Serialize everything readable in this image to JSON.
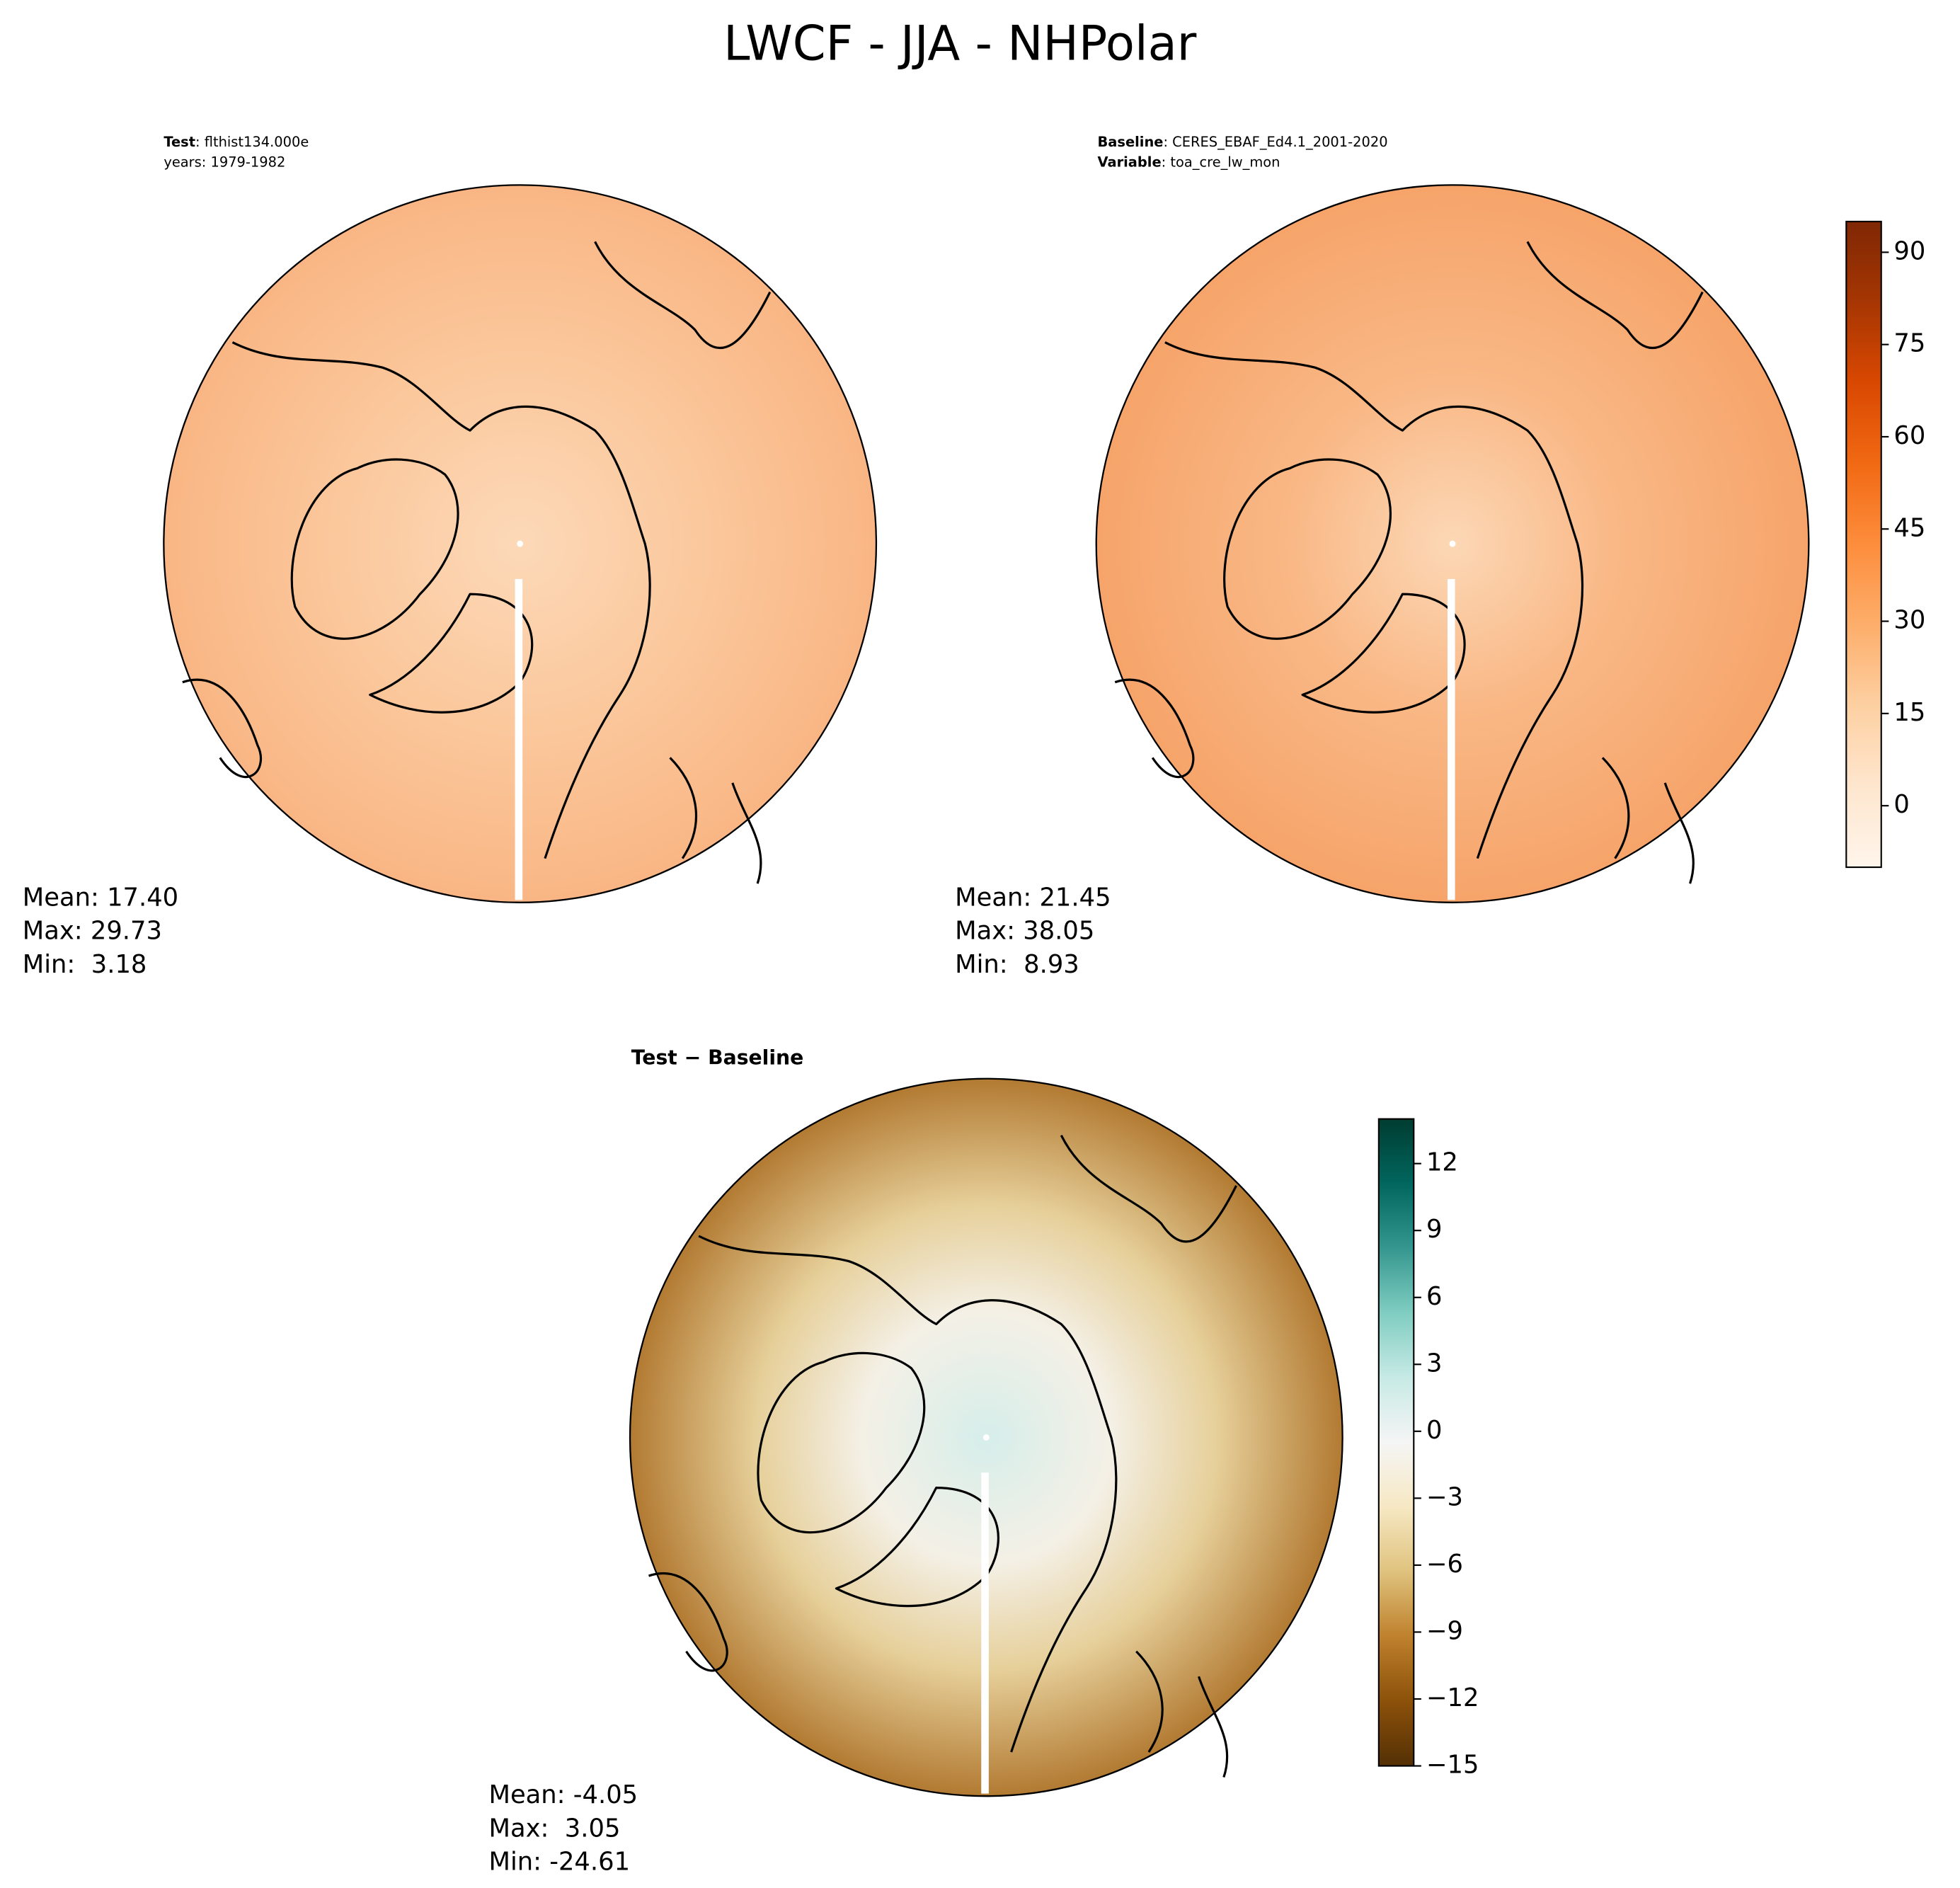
{
  "title": "LWCF - JJA - NHPolar",
  "panels": [
    {
      "annotations": [
        {
          "key": "Test",
          "text": ": flthist134.000e"
        },
        {
          "text": "years: 1979-1982"
        }
      ],
      "stats": [
        "Mean: 17.40",
        "Max: 29.73",
        "Min:  3.18"
      ]
    },
    {
      "annotations": [
        {
          "key": "Baseline",
          "text": ": CERES_EBAF_Ed4.1_2001-2020"
        },
        {
          "key": "Variable",
          "text": ": toa_cre_lw_mon"
        }
      ],
      "stats": [
        "Mean: 21.45",
        "Max: 38.05",
        "Min:  8.93"
      ]
    },
    {
      "heading": "Test − Baseline",
      "stats": [
        "Mean: -4.05",
        "Max:  3.05",
        "Min: -24.61"
      ]
    }
  ],
  "colorbars": [
    {
      "lim": [
        -10,
        95
      ],
      "ticks": [
        0,
        15,
        30,
        45,
        60,
        75,
        90
      ],
      "colors": [
        "#fff5eb",
        "#fee6ce",
        "#fdd0a2",
        "#fdae6b",
        "#fd8d3c",
        "#f16913",
        "#d94801",
        "#a63603",
        "#7f2704"
      ]
    },
    {
      "lim": [
        -15,
        14
      ],
      "ticks": [
        {
          "value": -15,
          "label": "−15"
        },
        {
          "value": -12,
          "label": "−12"
        },
        {
          "value": -9,
          "label": "−9"
        },
        {
          "value": -6,
          "label": "−6"
        },
        {
          "value": -3,
          "label": "−3"
        },
        0,
        3,
        6,
        9,
        12
      ],
      "colors": [
        "#543005",
        "#8c510a",
        "#bf812d",
        "#dfc27d",
        "#f6e8c3",
        "#f5f5f5",
        "#c7eae5",
        "#80cdc1",
        "#35978f",
        "#01665e",
        "#003c30"
      ]
    }
  ]
}
